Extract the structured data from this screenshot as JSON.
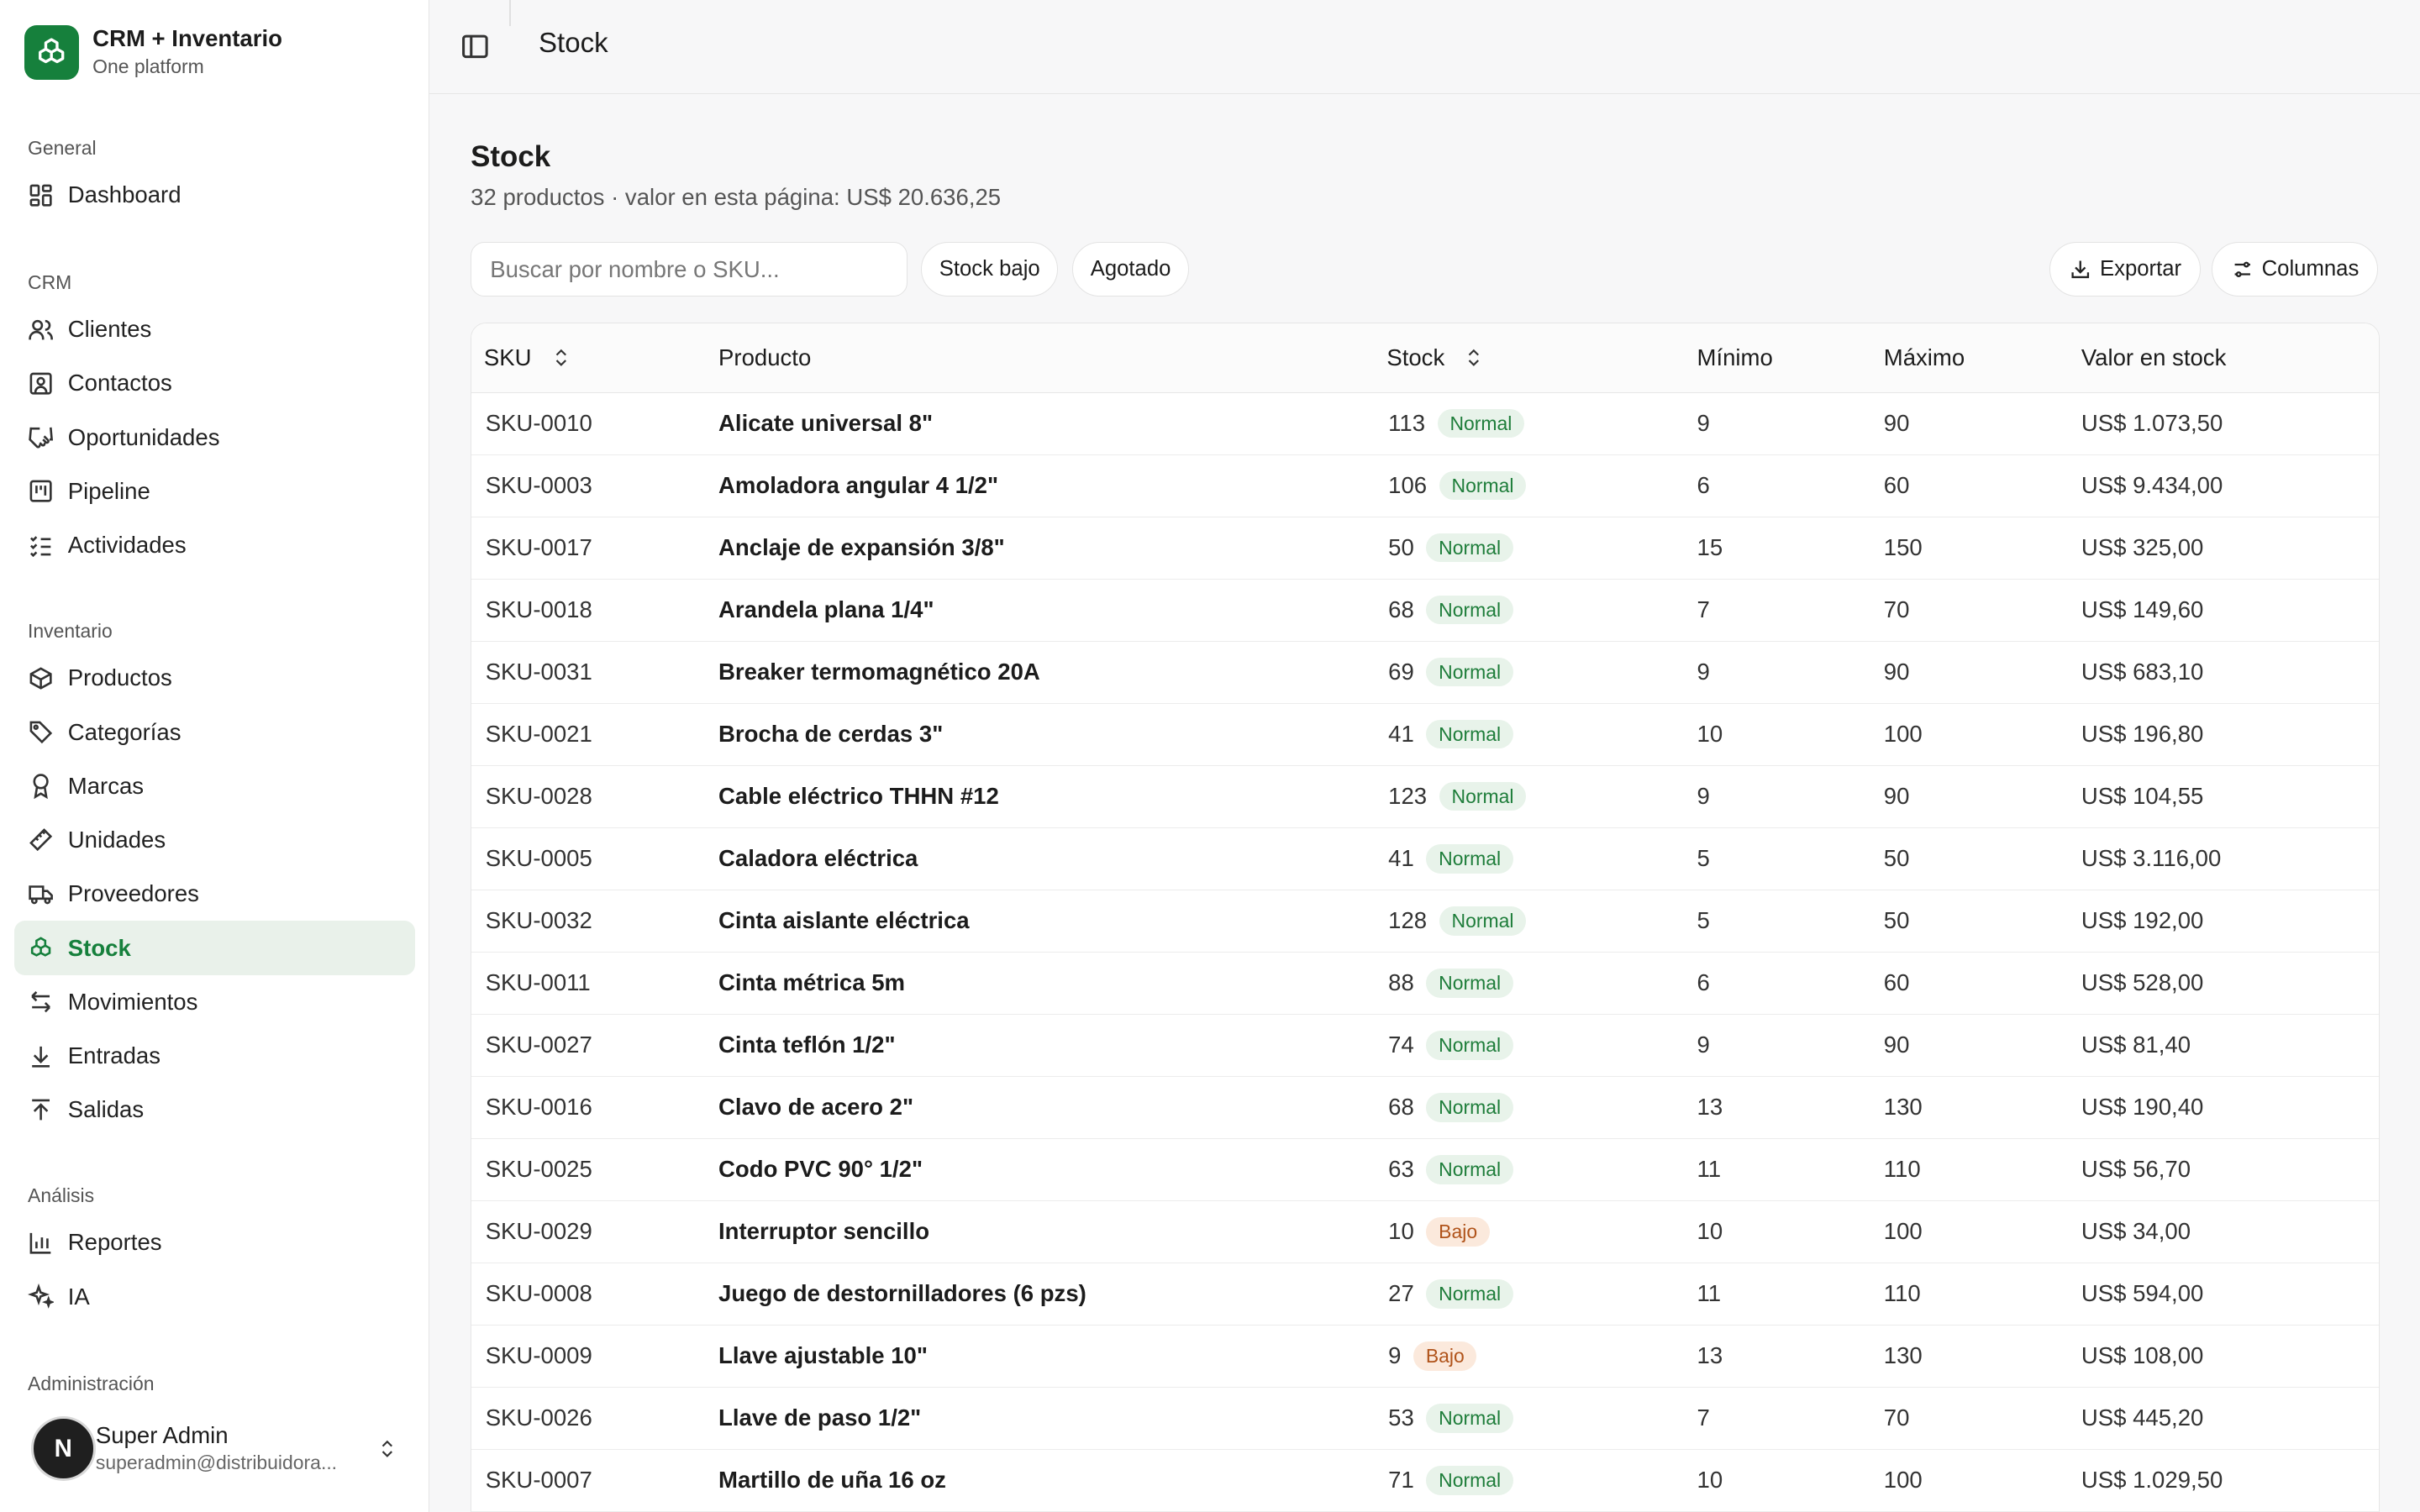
{
  "brand": {
    "title": "CRM + Inventario",
    "subtitle": "One platform",
    "accent": "#16803c"
  },
  "sidebar": {
    "groups": [
      {
        "label": "General",
        "items": [
          {
            "label": "Dashboard",
            "icon": "dashboard-icon"
          }
        ]
      },
      {
        "label": "CRM",
        "items": [
          {
            "label": "Clientes",
            "icon": "users-icon"
          },
          {
            "label": "Contactos",
            "icon": "contact-icon"
          },
          {
            "label": "Oportunidades",
            "icon": "handshake-icon"
          },
          {
            "label": "Pipeline",
            "icon": "kanban-icon"
          },
          {
            "label": "Actividades",
            "icon": "checklist-icon"
          }
        ]
      },
      {
        "label": "Inventario",
        "items": [
          {
            "label": "Productos",
            "icon": "box-icon"
          },
          {
            "label": "Categorías",
            "icon": "tag-icon"
          },
          {
            "label": "Marcas",
            "icon": "award-icon"
          },
          {
            "label": "Unidades",
            "icon": "ruler-icon"
          },
          {
            "label": "Proveedores",
            "icon": "truck-icon"
          },
          {
            "label": "Stock",
            "icon": "boxes-icon",
            "active": true
          },
          {
            "label": "Movimientos",
            "icon": "arrows-swap-icon"
          },
          {
            "label": "Entradas",
            "icon": "download-icon"
          },
          {
            "label": "Salidas",
            "icon": "upload-icon"
          }
        ]
      },
      {
        "label": "Análisis",
        "items": [
          {
            "label": "Reportes",
            "icon": "bar-chart-icon"
          },
          {
            "label": "IA",
            "icon": "sparkles-icon"
          }
        ]
      },
      {
        "label": "Administración",
        "items": []
      }
    ]
  },
  "user": {
    "initial": "N",
    "name": "Super Admin",
    "email": "superadmin@distribuidora..."
  },
  "topbar": {
    "title": "Stock"
  },
  "page": {
    "title": "Stock",
    "subtitle": "32 productos · valor en esta página: US$ 20.636,25"
  },
  "toolbar": {
    "search_placeholder": "Buscar por nombre o SKU...",
    "filter_low": "Stock bajo",
    "filter_out": "Agotado",
    "export_label": "Exportar",
    "columns_label": "Columnas"
  },
  "table": {
    "headers": {
      "sku": "SKU",
      "product": "Producto",
      "stock": "Stock",
      "min": "Mínimo",
      "max": "Máximo",
      "value": "Valor en stock"
    },
    "rows": [
      {
        "sku": "SKU-0010",
        "product": "Alicate universal 8\"",
        "stock": "113",
        "status": "Normal",
        "min": "9",
        "max": "90",
        "value": "US$ 1.073,50"
      },
      {
        "sku": "SKU-0003",
        "product": "Amoladora angular 4 1/2\"",
        "stock": "106",
        "status": "Normal",
        "min": "6",
        "max": "60",
        "value": "US$ 9.434,00"
      },
      {
        "sku": "SKU-0017",
        "product": "Anclaje de expansión 3/8\"",
        "stock": "50",
        "status": "Normal",
        "min": "15",
        "max": "150",
        "value": "US$ 325,00"
      },
      {
        "sku": "SKU-0018",
        "product": "Arandela plana 1/4\"",
        "stock": "68",
        "status": "Normal",
        "min": "7",
        "max": "70",
        "value": "US$ 149,60"
      },
      {
        "sku": "SKU-0031",
        "product": "Breaker termomagnético 20A",
        "stock": "69",
        "status": "Normal",
        "min": "9",
        "max": "90",
        "value": "US$ 683,10"
      },
      {
        "sku": "SKU-0021",
        "product": "Brocha de cerdas 3\"",
        "stock": "41",
        "status": "Normal",
        "min": "10",
        "max": "100",
        "value": "US$ 196,80"
      },
      {
        "sku": "SKU-0028",
        "product": "Cable eléctrico THHN #12",
        "stock": "123",
        "status": "Normal",
        "min": "9",
        "max": "90",
        "value": "US$ 104,55"
      },
      {
        "sku": "SKU-0005",
        "product": "Caladora eléctrica",
        "stock": "41",
        "status": "Normal",
        "min": "5",
        "max": "50",
        "value": "US$ 3.116,00"
      },
      {
        "sku": "SKU-0032",
        "product": "Cinta aislante eléctrica",
        "stock": "128",
        "status": "Normal",
        "min": "5",
        "max": "50",
        "value": "US$ 192,00"
      },
      {
        "sku": "SKU-0011",
        "product": "Cinta métrica 5m",
        "stock": "88",
        "status": "Normal",
        "min": "6",
        "max": "60",
        "value": "US$ 528,00"
      },
      {
        "sku": "SKU-0027",
        "product": "Cinta teflón 1/2\"",
        "stock": "74",
        "status": "Normal",
        "min": "9",
        "max": "90",
        "value": "US$ 81,40"
      },
      {
        "sku": "SKU-0016",
        "product": "Clavo de acero 2\"",
        "stock": "68",
        "status": "Normal",
        "min": "13",
        "max": "130",
        "value": "US$ 190,40"
      },
      {
        "sku": "SKU-0025",
        "product": "Codo PVC 90° 1/2\"",
        "stock": "63",
        "status": "Normal",
        "min": "11",
        "max": "110",
        "value": "US$ 56,70"
      },
      {
        "sku": "SKU-0029",
        "product": "Interruptor sencillo",
        "stock": "10",
        "status": "Bajo",
        "min": "10",
        "max": "100",
        "value": "US$ 34,00"
      },
      {
        "sku": "SKU-0008",
        "product": "Juego de destornilladores (6 pzs)",
        "stock": "27",
        "status": "Normal",
        "min": "11",
        "max": "110",
        "value": "US$ 594,00"
      },
      {
        "sku": "SKU-0009",
        "product": "Llave ajustable 10\"",
        "stock": "9",
        "status": "Bajo",
        "min": "13",
        "max": "130",
        "value": "US$ 108,00"
      },
      {
        "sku": "SKU-0026",
        "product": "Llave de paso 1/2\"",
        "stock": "53",
        "status": "Normal",
        "min": "7",
        "max": "70",
        "value": "US$ 445,20"
      },
      {
        "sku": "SKU-0007",
        "product": "Martillo de uña 16 oz",
        "stock": "71",
        "status": "Normal",
        "min": "10",
        "max": "100",
        "value": "US$ 1.029,50"
      }
    ]
  }
}
